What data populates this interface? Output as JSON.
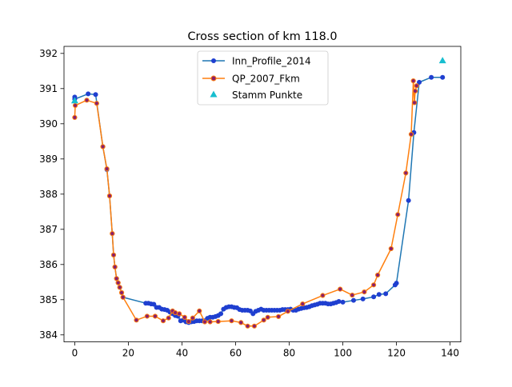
{
  "chart_data": {
    "type": "line",
    "title": "Cross section of km 118.0",
    "xlabel": "",
    "ylabel": "",
    "xlim": [
      -4,
      144
    ],
    "ylim": [
      383.8,
      392.2
    ],
    "xticks": [
      0,
      20,
      40,
      60,
      80,
      100,
      120,
      140
    ],
    "yticks": [
      384,
      385,
      386,
      387,
      388,
      389,
      390,
      391,
      392
    ],
    "grid": false,
    "legend_placement": "upper-center",
    "series": [
      {
        "name": "Inn_Profile_2014",
        "kind": "line-marker",
        "color": "#1f77b4",
        "marker_color": "#1f3fd0",
        "points": [
          [
            0,
            390.76
          ],
          [
            0,
            390.7
          ],
          [
            5,
            390.85
          ],
          [
            7.8,
            390.83
          ],
          [
            10.5,
            389.35
          ],
          [
            12,
            388.7
          ],
          [
            13,
            387.95
          ],
          [
            14,
            386.88
          ],
          [
            14.5,
            386.27
          ],
          [
            15,
            385.93
          ],
          [
            15.6,
            385.6
          ],
          [
            16.2,
            385.48
          ],
          [
            16.8,
            385.35
          ],
          [
            17.5,
            385.2
          ],
          [
            18,
            385.07
          ],
          [
            26.5,
            384.9
          ],
          [
            27.5,
            384.9
          ],
          [
            28.5,
            384.88
          ],
          [
            29.5,
            384.87
          ],
          [
            30.5,
            384.78
          ],
          [
            31.5,
            384.78
          ],
          [
            32.5,
            384.73
          ],
          [
            33.5,
            384.72
          ],
          [
            34.5,
            384.7
          ],
          [
            35.5,
            384.65
          ],
          [
            36.5,
            384.6
          ],
          [
            37.5,
            384.55
          ],
          [
            38.5,
            384.53
          ],
          [
            39.5,
            384.4
          ],
          [
            40.5,
            384.42
          ],
          [
            41.5,
            384.37
          ],
          [
            42.5,
            384.35
          ],
          [
            43.5,
            384.37
          ],
          [
            44.5,
            384.38
          ],
          [
            45.5,
            384.4
          ],
          [
            46.5,
            384.4
          ],
          [
            47.5,
            384.4
          ],
          [
            48.5,
            384.4
          ],
          [
            49.5,
            384.47
          ],
          [
            50.5,
            384.5
          ],
          [
            51.5,
            384.5
          ],
          [
            52.5,
            384.52
          ],
          [
            53.5,
            384.55
          ],
          [
            54.5,
            384.6
          ],
          [
            55.5,
            384.73
          ],
          [
            56.5,
            384.78
          ],
          [
            57.5,
            384.8
          ],
          [
            58.5,
            384.8
          ],
          [
            59.5,
            384.78
          ],
          [
            60.5,
            384.77
          ],
          [
            61.5,
            384.72
          ],
          [
            62.5,
            384.7
          ],
          [
            63.5,
            384.7
          ],
          [
            64.5,
            384.7
          ],
          [
            65.5,
            384.68
          ],
          [
            66.5,
            384.6
          ],
          [
            67.5,
            384.67
          ],
          [
            68.5,
            384.7
          ],
          [
            69.5,
            384.73
          ],
          [
            70.5,
            384.7
          ],
          [
            71.5,
            384.7
          ],
          [
            72.5,
            384.7
          ],
          [
            73.5,
            384.7
          ],
          [
            74.5,
            384.7
          ],
          [
            75.5,
            384.7
          ],
          [
            76.5,
            384.7
          ],
          [
            77.5,
            384.72
          ],
          [
            78.5,
            384.72
          ],
          [
            79.5,
            384.72
          ],
          [
            80.5,
            384.73
          ],
          [
            81.5,
            384.7
          ],
          [
            82.5,
            384.7
          ],
          [
            83.5,
            384.73
          ],
          [
            84.5,
            384.75
          ],
          [
            85.5,
            384.77
          ],
          [
            86.5,
            384.78
          ],
          [
            87.5,
            384.8
          ],
          [
            88.5,
            384.83
          ],
          [
            89.5,
            384.85
          ],
          [
            90.5,
            384.87
          ],
          [
            91.5,
            384.9
          ],
          [
            92.5,
            384.9
          ],
          [
            93.5,
            384.9
          ],
          [
            94.5,
            384.88
          ],
          [
            95.5,
            384.88
          ],
          [
            96.5,
            384.9
          ],
          [
            97.5,
            384.92
          ],
          [
            98.5,
            384.95
          ],
          [
            100,
            384.93
          ],
          [
            104,
            384.98
          ],
          [
            107.5,
            385.02
          ],
          [
            111.5,
            385.08
          ],
          [
            113.5,
            385.15
          ],
          [
            116,
            385.17
          ],
          [
            119.5,
            385.42
          ],
          [
            120,
            385.47
          ],
          [
            124.5,
            387.82
          ],
          [
            126.5,
            389.75
          ],
          [
            128.5,
            391.18
          ],
          [
            133,
            391.32
          ],
          [
            137.2,
            391.32
          ]
        ]
      },
      {
        "name": "QP_2007_Fkm",
        "kind": "line-marker",
        "color": "#ff7f0e",
        "marker_color": "#8a1f6a",
        "points": [
          [
            0,
            390.18
          ],
          [
            0.2,
            390.52
          ],
          [
            4.5,
            390.67
          ],
          [
            8.2,
            390.58
          ],
          [
            10.5,
            389.35
          ],
          [
            12,
            388.72
          ],
          [
            13,
            387.95
          ],
          [
            14,
            386.88
          ],
          [
            14.5,
            386.27
          ],
          [
            15,
            385.93
          ],
          [
            15.6,
            385.6
          ],
          [
            16.2,
            385.48
          ],
          [
            16.8,
            385.35
          ],
          [
            17.5,
            385.2
          ],
          [
            18,
            385.07
          ],
          [
            23,
            384.42
          ],
          [
            27,
            384.53
          ],
          [
            30,
            384.53
          ],
          [
            33,
            384.4
          ],
          [
            35,
            384.48
          ],
          [
            36.5,
            384.68
          ],
          [
            37.5,
            384.63
          ],
          [
            39,
            384.6
          ],
          [
            41,
            384.5
          ],
          [
            42.5,
            384.38
          ],
          [
            44,
            384.48
          ],
          [
            46.5,
            384.68
          ],
          [
            48.5,
            384.37
          ],
          [
            50.5,
            384.37
          ],
          [
            53.5,
            384.38
          ],
          [
            58.5,
            384.4
          ],
          [
            62,
            384.35
          ],
          [
            64.5,
            384.25
          ],
          [
            67,
            384.25
          ],
          [
            70.5,
            384.42
          ],
          [
            72,
            384.5
          ],
          [
            76,
            384.52
          ],
          [
            79.5,
            384.67
          ],
          [
            85,
            384.88
          ],
          [
            92.5,
            385.12
          ],
          [
            99,
            385.3
          ],
          [
            103.5,
            385.13
          ],
          [
            108,
            385.22
          ],
          [
            111.5,
            385.42
          ],
          [
            113,
            385.7
          ],
          [
            118,
            386.45
          ],
          [
            120.5,
            387.42
          ],
          [
            123.5,
            388.6
          ],
          [
            125.5,
            389.7
          ],
          [
            126.3,
            391.22
          ],
          [
            126.7,
            390.6
          ],
          [
            127,
            390.93
          ],
          [
            127.5,
            391.08
          ]
        ]
      },
      {
        "name": "Stamm Punkte",
        "kind": "scatter",
        "marker": "triangle",
        "color": "#17becf",
        "points": [
          [
            0,
            390.66
          ],
          [
            137.2,
            391.8
          ]
        ]
      }
    ]
  }
}
